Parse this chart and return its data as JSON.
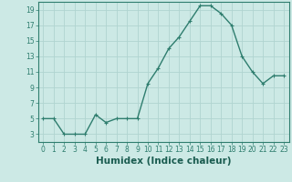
{
  "xlabel": "Humidex (Indice chaleur)",
  "x": [
    0,
    1,
    2,
    3,
    4,
    5,
    6,
    7,
    8,
    9,
    10,
    11,
    12,
    13,
    14,
    15,
    16,
    17,
    18,
    19,
    20,
    21,
    22,
    23
  ],
  "y": [
    5,
    5,
    3,
    3,
    3,
    5.5,
    4.5,
    5,
    5,
    5,
    9.5,
    11.5,
    14,
    15.5,
    17.5,
    19.5,
    19.5,
    18.5,
    17,
    13,
    11,
    9.5,
    10.5,
    10.5
  ],
  "line_color": "#2e7d6e",
  "marker": "+",
  "marker_size": 3,
  "bg_color": "#cce9e5",
  "grid_color": "#b0d4d0",
  "ylim": [
    2,
    20
  ],
  "xlim": [
    -0.5,
    23.5
  ],
  "yticks": [
    3,
    5,
    7,
    9,
    11,
    13,
    15,
    17,
    19
  ],
  "xticks": [
    0,
    1,
    2,
    3,
    4,
    5,
    6,
    7,
    8,
    9,
    10,
    11,
    12,
    13,
    14,
    15,
    16,
    17,
    18,
    19,
    20,
    21,
    22,
    23
  ],
  "tick_labelsize": 5.5,
  "xlabel_fontsize": 7.5,
  "line_width": 1.0
}
